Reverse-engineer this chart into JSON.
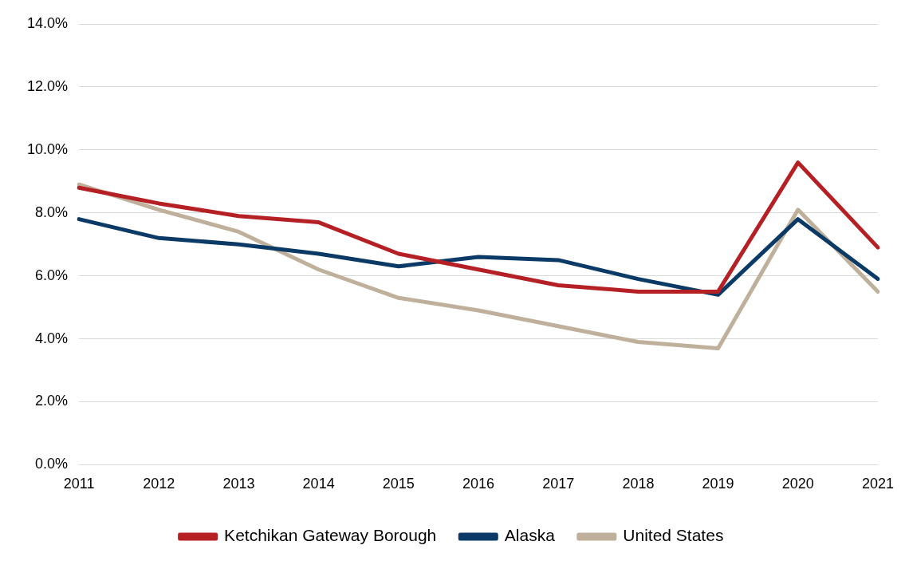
{
  "chart_data": {
    "type": "line",
    "categories": [
      "2011",
      "2012",
      "2013",
      "2014",
      "2015",
      "2016",
      "2017",
      "2018",
      "2019",
      "2020",
      "2021"
    ],
    "series": [
      {
        "name": "Ketchikan Gateway Borough",
        "color": "#b52025",
        "values": [
          8.8,
          8.3,
          7.9,
          7.7,
          6.7,
          6.2,
          5.7,
          5.5,
          5.5,
          9.6,
          6.9
        ]
      },
      {
        "name": "Alaska",
        "color": "#0b3a66",
        "values": [
          7.8,
          7.2,
          7.0,
          6.7,
          6.3,
          6.6,
          6.5,
          5.9,
          5.4,
          7.8,
          5.9
        ]
      },
      {
        "name": "United States",
        "color": "#bfb09c",
        "values": [
          8.9,
          8.1,
          7.4,
          6.2,
          5.3,
          4.9,
          4.4,
          3.9,
          3.7,
          8.1,
          5.5
        ]
      }
    ],
    "ylim": [
      0,
      14
    ],
    "yticks": [
      {
        "value": 0,
        "label": "0.0%"
      },
      {
        "value": 2,
        "label": "2.0%"
      },
      {
        "value": 4,
        "label": "4.0%"
      },
      {
        "value": 6,
        "label": "6.0%"
      },
      {
        "value": 8,
        "label": "8.0%"
      },
      {
        "value": 10,
        "label": "10.0%"
      },
      {
        "value": 12,
        "label": "12.0%"
      },
      {
        "value": 14,
        "label": "14.0%"
      }
    ],
    "grid": "y",
    "legend": "bottom",
    "marker": "none",
    "line_style": "solid"
  }
}
